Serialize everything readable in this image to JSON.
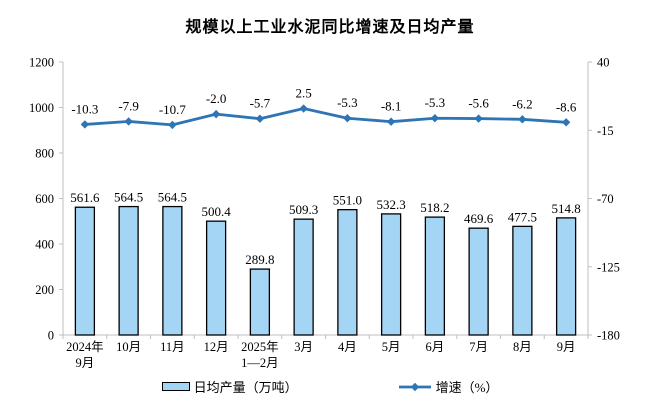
{
  "colors": {
    "bar_fill": "#A5D5F5",
    "bar_border": "#000000",
    "line": "#2E75B6",
    "axis": "#BFBFBF",
    "text": "#000000"
  },
  "legend": {
    "bar_label": "日均产量（万吨）",
    "line_label": "增速（%）"
  },
  "chart_data": {
    "type": "bar+line",
    "title": "规模以上工业水泥同比增速及日均产量",
    "categories": [
      [
        "2024年",
        "9月"
      ],
      [
        "10月"
      ],
      [
        "11月"
      ],
      [
        "12月"
      ],
      [
        "2025年",
        "1—2月"
      ],
      [
        "3月"
      ],
      [
        "4月"
      ],
      [
        "5月"
      ],
      [
        "6月"
      ],
      [
        "7月"
      ],
      [
        "8月"
      ],
      [
        "9月"
      ]
    ],
    "series": [
      {
        "name": "日均产量（万吨）",
        "type": "bar",
        "axis": "left",
        "values": [
          561.6,
          564.5,
          564.5,
          500.4,
          289.8,
          509.3,
          551.0,
          532.3,
          518.2,
          469.6,
          477.5,
          514.8
        ],
        "labels": [
          "561.6",
          "564.5",
          "564.5",
          "500.4",
          "289.8",
          "509.3",
          "551.0",
          "532.3",
          "518.2",
          "469.6",
          "477.5",
          "514.8"
        ]
      },
      {
        "name": "增速（%）",
        "type": "line",
        "axis": "right",
        "values": [
          -10.3,
          -7.9,
          -10.7,
          -2.0,
          -5.7,
          2.5,
          -5.3,
          -8.1,
          -5.3,
          -5.6,
          -6.2,
          -8.6
        ],
        "labels": [
          "-10.3",
          "-7.9",
          "-10.7",
          "-2.0",
          "-5.7",
          "2.5",
          "-5.3",
          "-8.1",
          "-5.3",
          "-5.6",
          "-6.2",
          "-8.6"
        ]
      }
    ],
    "left_axis": {
      "min": 0,
      "max": 1200,
      "ticks": [
        0,
        200,
        400,
        600,
        800,
        1000,
        1200
      ]
    },
    "right_axis": {
      "min": -180,
      "max": 40,
      "ticks": [
        40,
        -15,
        -70,
        -125,
        -180
      ]
    },
    "grid": false,
    "legend_position": "bottom"
  }
}
